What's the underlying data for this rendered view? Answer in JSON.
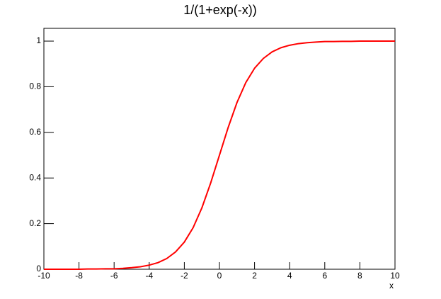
{
  "chart_data": {
    "type": "line",
    "title": "1/(1+exp(-x))",
    "x_label": "x",
    "x": [
      -10,
      -9.5,
      -9,
      -8.5,
      -8,
      -7.5,
      -7,
      -6.5,
      -6,
      -5.5,
      -5,
      -4.5,
      -4,
      -3.5,
      -3,
      -2.5,
      -2,
      -1.5,
      -1,
      -0.5,
      0,
      0.5,
      1,
      1.5,
      2,
      2.5,
      3,
      3.5,
      4,
      4.5,
      5,
      5.5,
      6,
      6.5,
      7,
      7.5,
      8,
      8.5,
      9,
      9.5,
      10
    ],
    "values": [
      0.0,
      0.0,
      0.0,
      0.0,
      0.0,
      0.001,
      0.001,
      0.002,
      0.002,
      0.004,
      0.007,
      0.011,
      0.018,
      0.029,
      0.047,
      0.076,
      0.119,
      0.182,
      0.269,
      0.378,
      0.5,
      0.622,
      0.731,
      0.818,
      0.881,
      0.924,
      0.953,
      0.971,
      0.982,
      0.989,
      0.993,
      0.996,
      0.998,
      0.998,
      0.999,
      0.999,
      1.0,
      1.0,
      1.0,
      1.0,
      1.0
    ],
    "color": "#ff0000",
    "xlim": [
      -10,
      10
    ],
    "xticks": [
      -10,
      -8,
      -6,
      -4,
      -2,
      0,
      2,
      4,
      6,
      8,
      10
    ],
    "ylim": [
      0,
      1.056
    ],
    "yticks": [
      0,
      0.2,
      0.4,
      0.6,
      0.8,
      1
    ],
    "grid": false
  }
}
